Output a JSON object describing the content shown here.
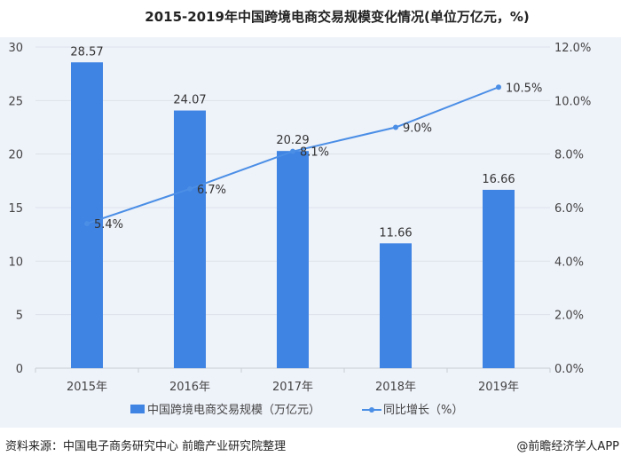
{
  "title": "2015-2019年中国跨境电商交易规模变化情况(单位万亿元，%)",
  "source": "资料来源：中国电子商务研究中心 前瞻产业研究院整理",
  "brand": "@前瞻经济学人APP",
  "chart_data": {
    "type": "bar+line",
    "categories": [
      "2015年",
      "2016年",
      "2017年",
      "2018年",
      "2019年"
    ],
    "series": [
      {
        "name": "中国跨境电商交易规模（万亿元）",
        "type": "bar",
        "axis": "left",
        "values": [
          28.57,
          24.07,
          20.29,
          11.66,
          16.66
        ],
        "labels": [
          "28.57",
          "24.07",
          "20.29",
          "11.66",
          "16.66"
        ],
        "color": "#3f83e3"
      },
      {
        "name": "同比增长（%）",
        "type": "line",
        "axis": "right",
        "values": [
          5.4,
          6.7,
          8.1,
          9.0,
          10.5
        ],
        "labels": [
          "5.4%",
          "6.7%",
          "8.1%",
          "9.0%",
          "10.5%"
        ],
        "color": "#4a8ee6"
      }
    ],
    "left_axis": {
      "ylim": [
        0,
        30
      ],
      "ticks": [
        "0",
        "5",
        "10",
        "15",
        "20",
        "25",
        "30"
      ]
    },
    "right_axis": {
      "ylim": [
        0,
        12
      ],
      "ticks": [
        "0.0%",
        "2.0%",
        "4.0%",
        "6.0%",
        "8.0%",
        "10.0%",
        "12.0%"
      ]
    },
    "legend": "bottom",
    "grid": true
  }
}
